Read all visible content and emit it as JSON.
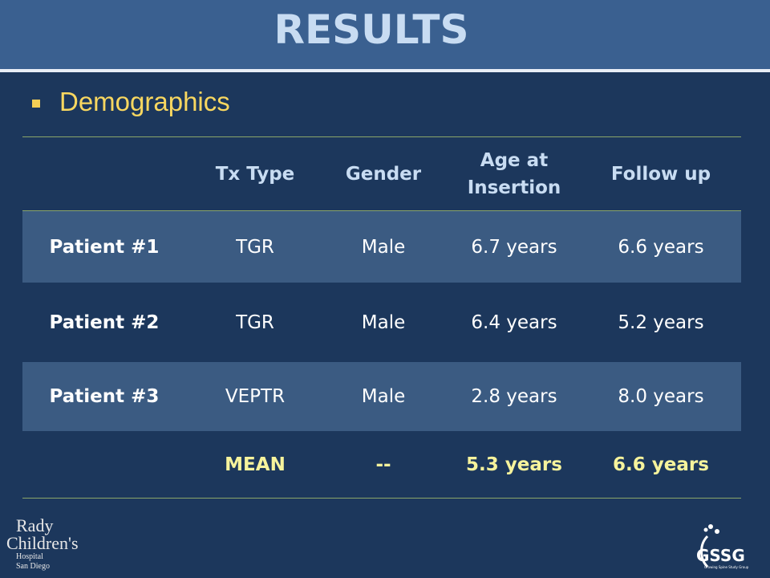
{
  "header": {
    "title": "RESULTS"
  },
  "bullet": "Demographics",
  "table": {
    "columns": [
      "Tx Type",
      "Gender",
      "Age at Insertion",
      "Follow up"
    ],
    "rows": [
      {
        "label": "Patient #1",
        "cells": [
          "TGR",
          "Male",
          "6.7 years",
          "6.6 years"
        ]
      },
      {
        "label": "Patient #2",
        "cells": [
          "TGR",
          "Male",
          "6.4 years",
          "5.2 years"
        ]
      },
      {
        "label": "Patient #3",
        "cells": [
          "VEPTR",
          "Male",
          "2.8 years",
          "8.0 years"
        ]
      }
    ],
    "summary": [
      "MEAN",
      "--",
      "5.3 years",
      "6.6 years"
    ]
  },
  "logos": {
    "left": [
      "Rady",
      "Children's",
      "Hospital",
      "San Diego"
    ],
    "right": [
      "GSSG",
      "Growing Spine Study Group"
    ]
  }
}
